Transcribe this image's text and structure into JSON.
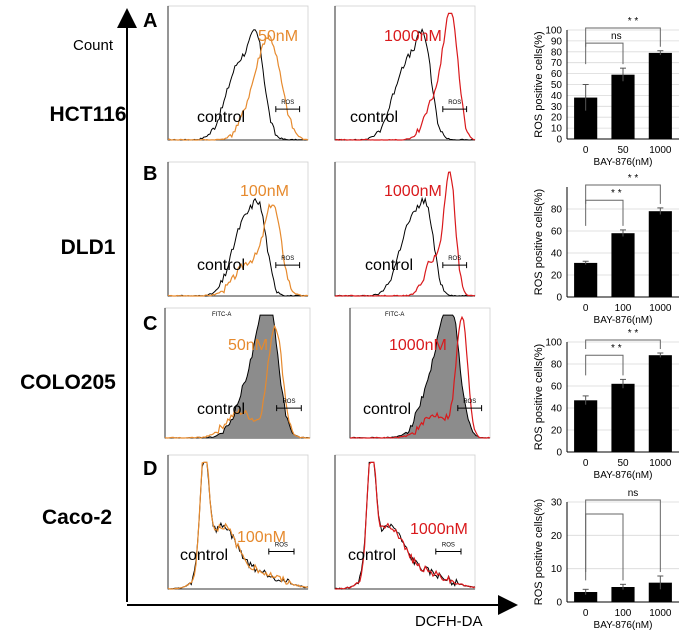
{
  "figure": {
    "y_axis_label": "Count",
    "x_axis_label": "DCFH-DA",
    "control_label": "control",
    "gate_label": "ROS",
    "fitc_label": "FITC-A",
    "colors": {
      "low_dose": "#e68a2e",
      "high_dose": "#d9191c",
      "control": "#000000",
      "bar": "#000000",
      "shade": "#8c8c8c"
    },
    "rows": [
      {
        "panel": "A",
        "cell_line": "HCT116",
        "low_dose": "50nM",
        "high_dose": "1000nM"
      },
      {
        "panel": "B",
        "cell_line": "DLD1",
        "low_dose": "100nM",
        "high_dose": "1000nM"
      },
      {
        "panel": "C",
        "cell_line": "COLO205",
        "low_dose": "50nM",
        "high_dose": "1000nM"
      },
      {
        "panel": "D",
        "cell_line": "Caco-2",
        "low_dose": "100nM",
        "high_dose": "1000nM"
      }
    ]
  },
  "chart_data": [
    {
      "type": "bar",
      "title": "HCT116",
      "categories": [
        "0",
        "50",
        "1000"
      ],
      "values": [
        38,
        59,
        79
      ],
      "errors": [
        12,
        6,
        2
      ],
      "xlabel": "BAY-876(nM)",
      "ylabel": "ROS positive cells(%)",
      "ylim": [
        0,
        100
      ],
      "yticks": [
        "0",
        "10",
        "20",
        "30",
        "40",
        "50",
        "60",
        "70",
        "80",
        "90",
        "100"
      ],
      "significance": [
        {
          "from": 0,
          "to": 1,
          "label": "ns"
        },
        {
          "from": 0,
          "to": 2,
          "label": "* *"
        }
      ]
    },
    {
      "type": "bar",
      "title": "DLD1",
      "categories": [
        "0",
        "100",
        "1000"
      ],
      "values": [
        31,
        58,
        78
      ],
      "errors": [
        1.5,
        3,
        3
      ],
      "xlabel": "BAY-876(nM)",
      "ylabel": "ROS positive cells(%)",
      "ylim": [
        0,
        100
      ],
      "yticks": [
        "0",
        "20",
        "40",
        "60",
        "80"
      ],
      "significance": [
        {
          "from": 0,
          "to": 1,
          "label": "* *"
        },
        {
          "from": 0,
          "to": 2,
          "label": "* *"
        }
      ]
    },
    {
      "type": "bar",
      "title": "COLO205",
      "categories": [
        "0",
        "50",
        "1000"
      ],
      "values": [
        47,
        62,
        88
      ],
      "errors": [
        4,
        4,
        2
      ],
      "xlabel": "BAY-876(nM)",
      "ylabel": "ROS positive cells(%)",
      "ylim": [
        0,
        100
      ],
      "yticks": [
        "0",
        "20",
        "40",
        "60",
        "80",
        "100"
      ],
      "significance": [
        {
          "from": 0,
          "to": 1,
          "label": "* *"
        },
        {
          "from": 0,
          "to": 2,
          "label": "* *"
        }
      ]
    },
    {
      "type": "bar",
      "title": "Caco-2",
      "categories": [
        "0",
        "100",
        "1000"
      ],
      "values": [
        3,
        4.5,
        5.8
      ],
      "errors": [
        0.8,
        0.8,
        2
      ],
      "xlabel": "BAY-876(nM)",
      "ylabel": "ROS positive cells(%)",
      "ylim": [
        0,
        30
      ],
      "yticks": [
        "0",
        "10",
        "20",
        "30"
      ],
      "significance": [
        {
          "from": 0,
          "to": 1,
          "label": ""
        },
        {
          "from": 0,
          "to": 2,
          "label": "ns"
        }
      ]
    }
  ]
}
